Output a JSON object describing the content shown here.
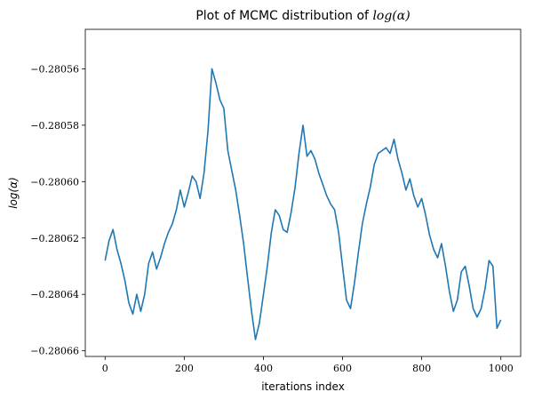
{
  "chart_data": {
    "type": "line",
    "title_text": "Plot of MCMC distribution of ",
    "title_math": "log(α)",
    "xlabel": "iterations index",
    "ylabel": "log(α)",
    "xlim": [
      -50,
      1050
    ],
    "ylim": [
      -0.280662,
      -0.280546
    ],
    "xticks": [
      0,
      200,
      400,
      600,
      800,
      1000
    ],
    "xtick_labels": [
      "0",
      "200",
      "400",
      "600",
      "800",
      "1000"
    ],
    "yticks": [
      -0.28056,
      -0.28058,
      -0.2806,
      -0.28062,
      -0.28064,
      -0.28066
    ],
    "ytick_labels": [
      "−0.28056",
      "−0.28058",
      "−0.28060",
      "−0.28062",
      "−0.28064",
      "−0.28066"
    ],
    "grid": false,
    "line_color": "#1f77b4",
    "series": [
      {
        "x": [
          0,
          10,
          20,
          30,
          40,
          50,
          60,
          70,
          80,
          90,
          100,
          110,
          120,
          130,
          140,
          150,
          160,
          170,
          180,
          190,
          200,
          210,
          220,
          230,
          240,
          250,
          260,
          270,
          280,
          290,
          300,
          310,
          320,
          330,
          340,
          350,
          360,
          370,
          380,
          390,
          400,
          410,
          420,
          430,
          440,
          450,
          460,
          470,
          480,
          490,
          500,
          510,
          520,
          530,
          540,
          550,
          560,
          570,
          580,
          590,
          600,
          610,
          620,
          630,
          640,
          650,
          660,
          670,
          680,
          690,
          700,
          710,
          720,
          730,
          740,
          750,
          760,
          770,
          780,
          790,
          800,
          810,
          820,
          830,
          840,
          850,
          860,
          870,
          880,
          890,
          900,
          910,
          920,
          930,
          940,
          950,
          960,
          970,
          980,
          990,
          1000
        ],
        "y": [
          -0.280628,
          -0.280621,
          -0.280617,
          -0.280624,
          -0.280629,
          -0.280635,
          -0.280643,
          -0.280647,
          -0.28064,
          -0.280646,
          -0.28064,
          -0.280629,
          -0.280625,
          -0.280631,
          -0.280627,
          -0.280622,
          -0.280618,
          -0.280615,
          -0.28061,
          -0.280603,
          -0.280609,
          -0.280604,
          -0.280598,
          -0.2806,
          -0.280606,
          -0.280597,
          -0.280582,
          -0.28056,
          -0.280565,
          -0.280571,
          -0.280574,
          -0.280589,
          -0.280596,
          -0.280603,
          -0.280612,
          -0.280622,
          -0.280634,
          -0.280646,
          -0.280656,
          -0.28065,
          -0.28064,
          -0.28063,
          -0.280618,
          -0.28061,
          -0.280612,
          -0.280617,
          -0.280618,
          -0.280611,
          -0.280602,
          -0.28059,
          -0.28058,
          -0.280591,
          -0.280589,
          -0.280592,
          -0.280597,
          -0.280601,
          -0.280605,
          -0.280608,
          -0.28061,
          -0.280618,
          -0.28063,
          -0.280642,
          -0.280645,
          -0.280636,
          -0.280625,
          -0.280615,
          -0.280608,
          -0.280602,
          -0.280594,
          -0.28059,
          -0.280589,
          -0.280588,
          -0.28059,
          -0.280585,
          -0.280592,
          -0.280597,
          -0.280603,
          -0.280599,
          -0.280605,
          -0.280609,
          -0.280606,
          -0.280612,
          -0.280619,
          -0.280624,
          -0.280627,
          -0.280622,
          -0.28063,
          -0.280639,
          -0.280646,
          -0.280642,
          -0.280632,
          -0.28063,
          -0.280637,
          -0.280645,
          -0.280648,
          -0.280645,
          -0.280638,
          -0.280628,
          -0.28063,
          -0.280652,
          -0.280649
        ]
      }
    ]
  }
}
